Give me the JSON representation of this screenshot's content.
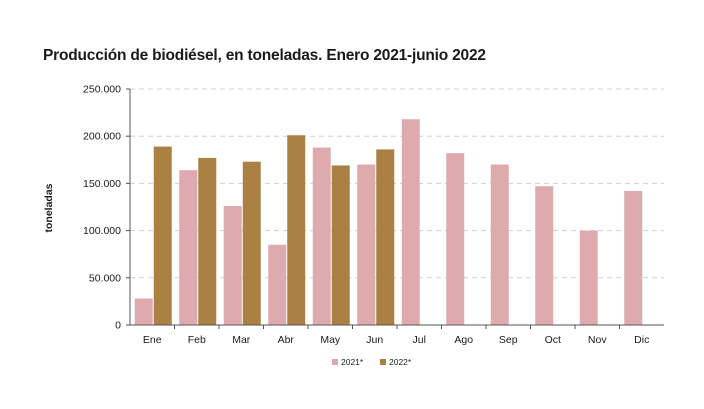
{
  "chart_data": {
    "type": "bar",
    "title": "Producción de biodiésel, en toneladas. Enero 2021-junio 2022",
    "xlabel": "",
    "ylabel": "toneladas",
    "categories": [
      "Ene",
      "Feb",
      "Mar",
      "Abr",
      "May",
      "Jun",
      "Jul",
      "Ago",
      "Sep",
      "Oct",
      "Nov",
      "Dic"
    ],
    "series": [
      {
        "name": "2021*",
        "color": "#deaaae",
        "values": [
          28000,
          164000,
          126000,
          85000,
          188000,
          170000,
          218000,
          182000,
          170000,
          147000,
          100000,
          142000
        ]
      },
      {
        "name": "2022*",
        "color": "#aa8043",
        "values": [
          189000,
          177000,
          173000,
          201000,
          169000,
          186000,
          null,
          null,
          null,
          null,
          null,
          null
        ]
      }
    ],
    "yticks": [
      "0",
      "50.000",
      "100.000",
      "150.000",
      "200.000",
      "250.000"
    ],
    "ylim": [
      0,
      250000
    ],
    "grid": "horizontal-dashed",
    "legend": "bottom-center"
  }
}
